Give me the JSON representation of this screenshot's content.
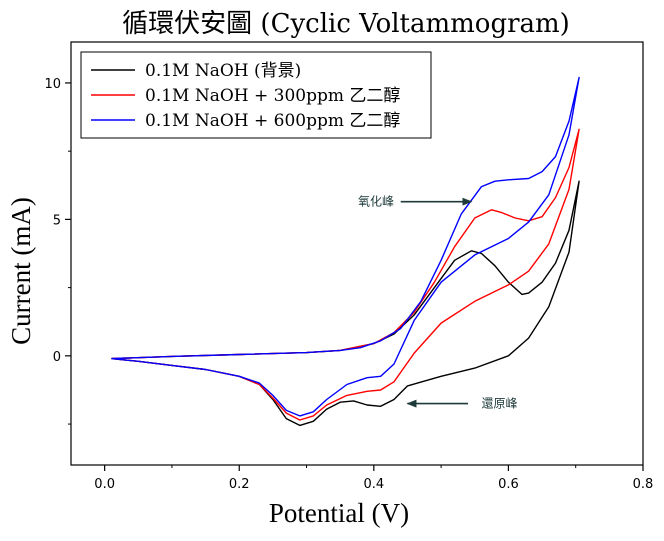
{
  "chart_data": {
    "type": "line",
    "title": "循環伏安圖 (Cyclic Voltammogram)",
    "xlabel": "Potential (V)",
    "ylabel": "Current (mA)",
    "xlim": [
      -0.05,
      0.8
    ],
    "ylim": [
      -4,
      11.5
    ],
    "xticks": [
      0.0,
      0.2,
      0.4,
      0.6,
      0.8
    ],
    "xtick_labels": [
      "0.0",
      "0.2",
      "0.4",
      "0.6",
      "0.8"
    ],
    "yticks": [
      0,
      5,
      10
    ],
    "ytick_labels": [
      "0",
      "5",
      "10"
    ],
    "grid": false,
    "legend_position": "top-left",
    "series": [
      {
        "name": "0.1M NaOH (背景)",
        "color": "#000000",
        "points": [
          [
            0.01,
            -0.1
          ],
          [
            0.05,
            -0.2
          ],
          [
            0.1,
            -0.35
          ],
          [
            0.15,
            -0.5
          ],
          [
            0.2,
            -0.75
          ],
          [
            0.23,
            -1.05
          ],
          [
            0.25,
            -1.6
          ],
          [
            0.27,
            -2.3
          ],
          [
            0.29,
            -2.55
          ],
          [
            0.31,
            -2.4
          ],
          [
            0.33,
            -1.95
          ],
          [
            0.35,
            -1.7
          ],
          [
            0.37,
            -1.65
          ],
          [
            0.39,
            -1.8
          ],
          [
            0.41,
            -1.85
          ],
          [
            0.43,
            -1.6
          ],
          [
            0.45,
            -1.1
          ],
          [
            0.5,
            -0.75
          ],
          [
            0.55,
            -0.45
          ],
          [
            0.6,
            0.0
          ],
          [
            0.63,
            0.65
          ],
          [
            0.66,
            1.8
          ],
          [
            0.69,
            3.8
          ],
          [
            0.705,
            6.4
          ],
          [
            0.69,
            4.6
          ],
          [
            0.67,
            3.4
          ],
          [
            0.65,
            2.7
          ],
          [
            0.63,
            2.3
          ],
          [
            0.62,
            2.25
          ],
          [
            0.6,
            2.7
          ],
          [
            0.58,
            3.3
          ],
          [
            0.56,
            3.75
          ],
          [
            0.545,
            3.85
          ],
          [
            0.52,
            3.5
          ],
          [
            0.49,
            2.5
          ],
          [
            0.46,
            1.5
          ],
          [
            0.43,
            0.8
          ],
          [
            0.4,
            0.45
          ],
          [
            0.35,
            0.2
          ],
          [
            0.3,
            0.12
          ],
          [
            0.2,
            0.05
          ],
          [
            0.1,
            -0.02
          ],
          [
            0.01,
            -0.1
          ]
        ]
      },
      {
        "name": "0.1M NaOH + 300ppm 乙二醇",
        "color": "#ff0000",
        "points": [
          [
            0.01,
            -0.1
          ],
          [
            0.05,
            -0.2
          ],
          [
            0.1,
            -0.35
          ],
          [
            0.15,
            -0.5
          ],
          [
            0.2,
            -0.75
          ],
          [
            0.23,
            -1.05
          ],
          [
            0.25,
            -1.55
          ],
          [
            0.27,
            -2.1
          ],
          [
            0.29,
            -2.35
          ],
          [
            0.31,
            -2.2
          ],
          [
            0.33,
            -1.8
          ],
          [
            0.36,
            -1.45
          ],
          [
            0.39,
            -1.3
          ],
          [
            0.41,
            -1.25
          ],
          [
            0.43,
            -0.95
          ],
          [
            0.46,
            0.1
          ],
          [
            0.5,
            1.2
          ],
          [
            0.55,
            2.0
          ],
          [
            0.6,
            2.6
          ],
          [
            0.63,
            3.1
          ],
          [
            0.66,
            4.1
          ],
          [
            0.69,
            6.1
          ],
          [
            0.705,
            8.3
          ],
          [
            0.69,
            6.9
          ],
          [
            0.67,
            5.8
          ],
          [
            0.65,
            5.1
          ],
          [
            0.63,
            4.95
          ],
          [
            0.61,
            5.05
          ],
          [
            0.59,
            5.25
          ],
          [
            0.575,
            5.35
          ],
          [
            0.55,
            5.05
          ],
          [
            0.52,
            4.0
          ],
          [
            0.49,
            2.7
          ],
          [
            0.46,
            1.6
          ],
          [
            0.43,
            0.85
          ],
          [
            0.4,
            0.45
          ],
          [
            0.35,
            0.2
          ],
          [
            0.3,
            0.12
          ],
          [
            0.2,
            0.05
          ],
          [
            0.1,
            -0.02
          ],
          [
            0.01,
            -0.1
          ]
        ]
      },
      {
        "name": "0.1M NaOH + 600ppm 乙二醇",
        "color": "#0000ff",
        "points": [
          [
            0.01,
            -0.1
          ],
          [
            0.05,
            -0.2
          ],
          [
            0.1,
            -0.35
          ],
          [
            0.15,
            -0.5
          ],
          [
            0.2,
            -0.75
          ],
          [
            0.23,
            -1.0
          ],
          [
            0.25,
            -1.45
          ],
          [
            0.27,
            -2.0
          ],
          [
            0.29,
            -2.2
          ],
          [
            0.31,
            -2.05
          ],
          [
            0.33,
            -1.6
          ],
          [
            0.36,
            -1.05
          ],
          [
            0.39,
            -0.8
          ],
          [
            0.41,
            -0.75
          ],
          [
            0.43,
            -0.3
          ],
          [
            0.46,
            1.3
          ],
          [
            0.5,
            2.7
          ],
          [
            0.55,
            3.7
          ],
          [
            0.6,
            4.3
          ],
          [
            0.63,
            4.9
          ],
          [
            0.66,
            5.9
          ],
          [
            0.69,
            8.1
          ],
          [
            0.705,
            10.2
          ],
          [
            0.69,
            8.6
          ],
          [
            0.67,
            7.3
          ],
          [
            0.65,
            6.75
          ],
          [
            0.63,
            6.5
          ],
          [
            0.6,
            6.45
          ],
          [
            0.58,
            6.4
          ],
          [
            0.56,
            6.2
          ],
          [
            0.53,
            5.2
          ],
          [
            0.5,
            3.5
          ],
          [
            0.47,
            2.0
          ],
          [
            0.44,
            1.0
          ],
          [
            0.41,
            0.55
          ],
          [
            0.38,
            0.3
          ],
          [
            0.35,
            0.2
          ],
          [
            0.3,
            0.12
          ],
          [
            0.2,
            0.05
          ],
          [
            0.1,
            -0.02
          ],
          [
            0.01,
            -0.1
          ]
        ]
      }
    ],
    "annotations": [
      {
        "text": "氧化峰",
        "color": "#1e3a3a",
        "arrow_to": [
          0.545,
          5.65
        ],
        "arrow_from": [
          0.44,
          5.65
        ],
        "text_at": [
          0.43,
          5.65
        ],
        "anchor": "end"
      },
      {
        "text": "還原峰",
        "color": "#1e3a3a",
        "arrow_to": [
          0.45,
          -1.75
        ],
        "arrow_from": [
          0.54,
          -1.75
        ],
        "text_at": [
          0.56,
          -1.75
        ],
        "anchor": "start"
      }
    ]
  }
}
